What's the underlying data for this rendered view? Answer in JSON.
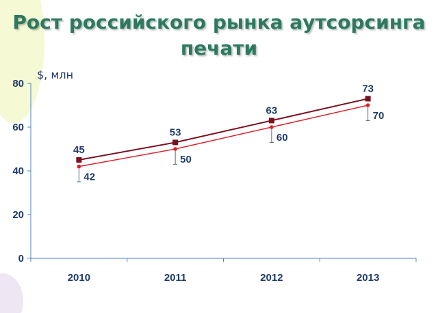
{
  "title_line1": "Рост российского рынка аутсорсинга",
  "title_line2": "печати",
  "colors": {
    "title": "#2b7a60",
    "axis_text": "#1f3a6b",
    "series_upper": "#7a1020",
    "series_lower": "#e0202a",
    "axis": "#4f81bd",
    "deco_yellow": "#f3f7c9",
    "deco_purple": "#ece3f2"
  },
  "chart_data": {
    "type": "line",
    "unit_label": "$, млн",
    "categories": [
      "2010",
      "2011",
      "2012",
      "2013"
    ],
    "ylim": [
      0,
      80
    ],
    "yticks": [
      0,
      20,
      40,
      60,
      80
    ],
    "grid": false,
    "legend": "none",
    "series": [
      {
        "values": [
          45,
          53,
          63,
          73
        ]
      },
      {
        "values": [
          42,
          50,
          60,
          70
        ]
      }
    ],
    "error_lower_bounds": [
      35,
      43,
      53,
      63
    ]
  }
}
